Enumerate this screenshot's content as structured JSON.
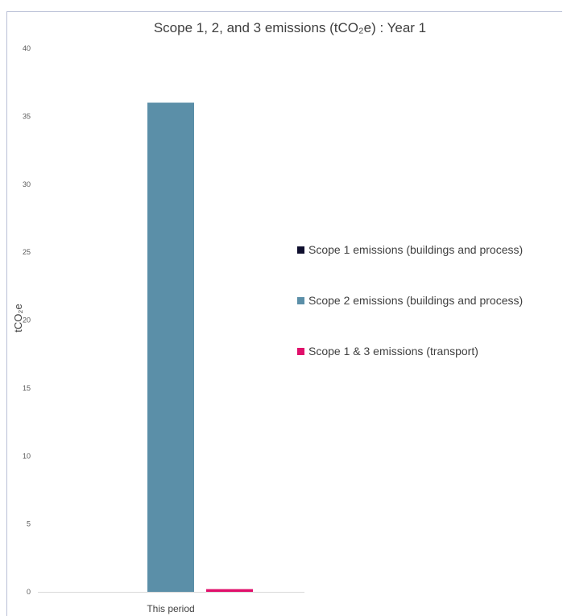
{
  "chart_data": {
    "type": "bar",
    "title": "Scope 1, 2, and 3 emissions (tCO₂e) : Year 1",
    "ylabel": "tCO₂e",
    "xlabel": "",
    "categories": [
      "This period"
    ],
    "ylim": [
      0,
      40
    ],
    "yticks": [
      "0",
      "5",
      "10",
      "15",
      "20",
      "25",
      "30",
      "35",
      "40"
    ],
    "grid": false,
    "legend_position": "right",
    "series": [
      {
        "name": "Scope 1 emissions (buildings and process)",
        "values": [
          0
        ],
        "color": "#0f0f2e"
      },
      {
        "name": "Scope 2 emissions (buildings and process)",
        "values": [
          36
        ],
        "color": "#5b8fa8"
      },
      {
        "name": "Scope 1 & 3 emissions (transport)",
        "values": [
          0.2
        ],
        "color": "#e0106b"
      }
    ]
  }
}
